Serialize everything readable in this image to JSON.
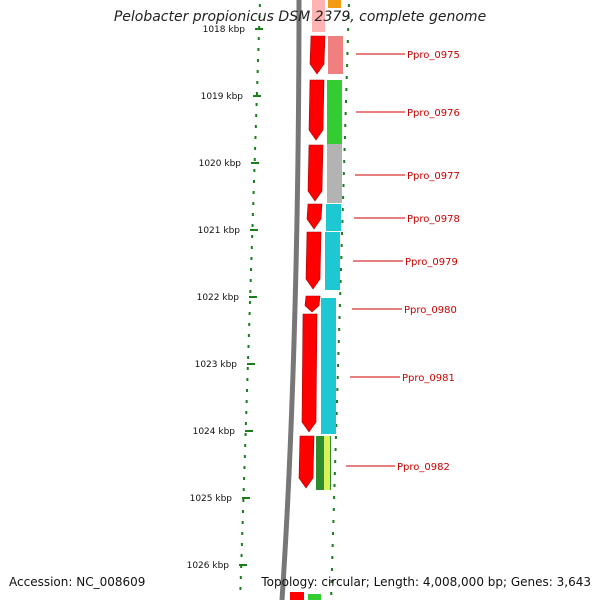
{
  "title": "Pelobacter propionicus DSM 2379, complete genome",
  "footer": {
    "accession": "Accession: NC_008609",
    "summary": "Topology: circular; Length: 4,008,000 bp; Genes: 3,643"
  },
  "scale": {
    "unit": "kbp",
    "ticks": [
      "1018 kbp",
      "1019 kbp",
      "1020 kbp",
      "1021 kbp",
      "1022 kbp",
      "1023 kbp",
      "1024 kbp",
      "1025 kbp",
      "1026 kbp"
    ]
  },
  "genes": [
    {
      "label": "Ppro_0975",
      "color": "#f08080"
    },
    {
      "label": "Ppro_0976",
      "color": "#33cc33"
    },
    {
      "label": "Ppro_0977",
      "color": "#b3b3b3"
    },
    {
      "label": "Ppro_0978",
      "color": "#1ec8d2"
    },
    {
      "label": "Ppro_0979",
      "color": "#1ec8d2"
    },
    {
      "label": "Ppro_0980",
      "color": "#1ec8d2"
    },
    {
      "label": "Ppro_0981",
      "color": "#1ec8d2"
    },
    {
      "label": "Ppro_0982",
      "color": "#2e8b2e"
    }
  ],
  "colors": {
    "cds": "#ff0000",
    "backbone": "#888888",
    "tick": "#1a7f1a",
    "label": "#cc0000"
  }
}
